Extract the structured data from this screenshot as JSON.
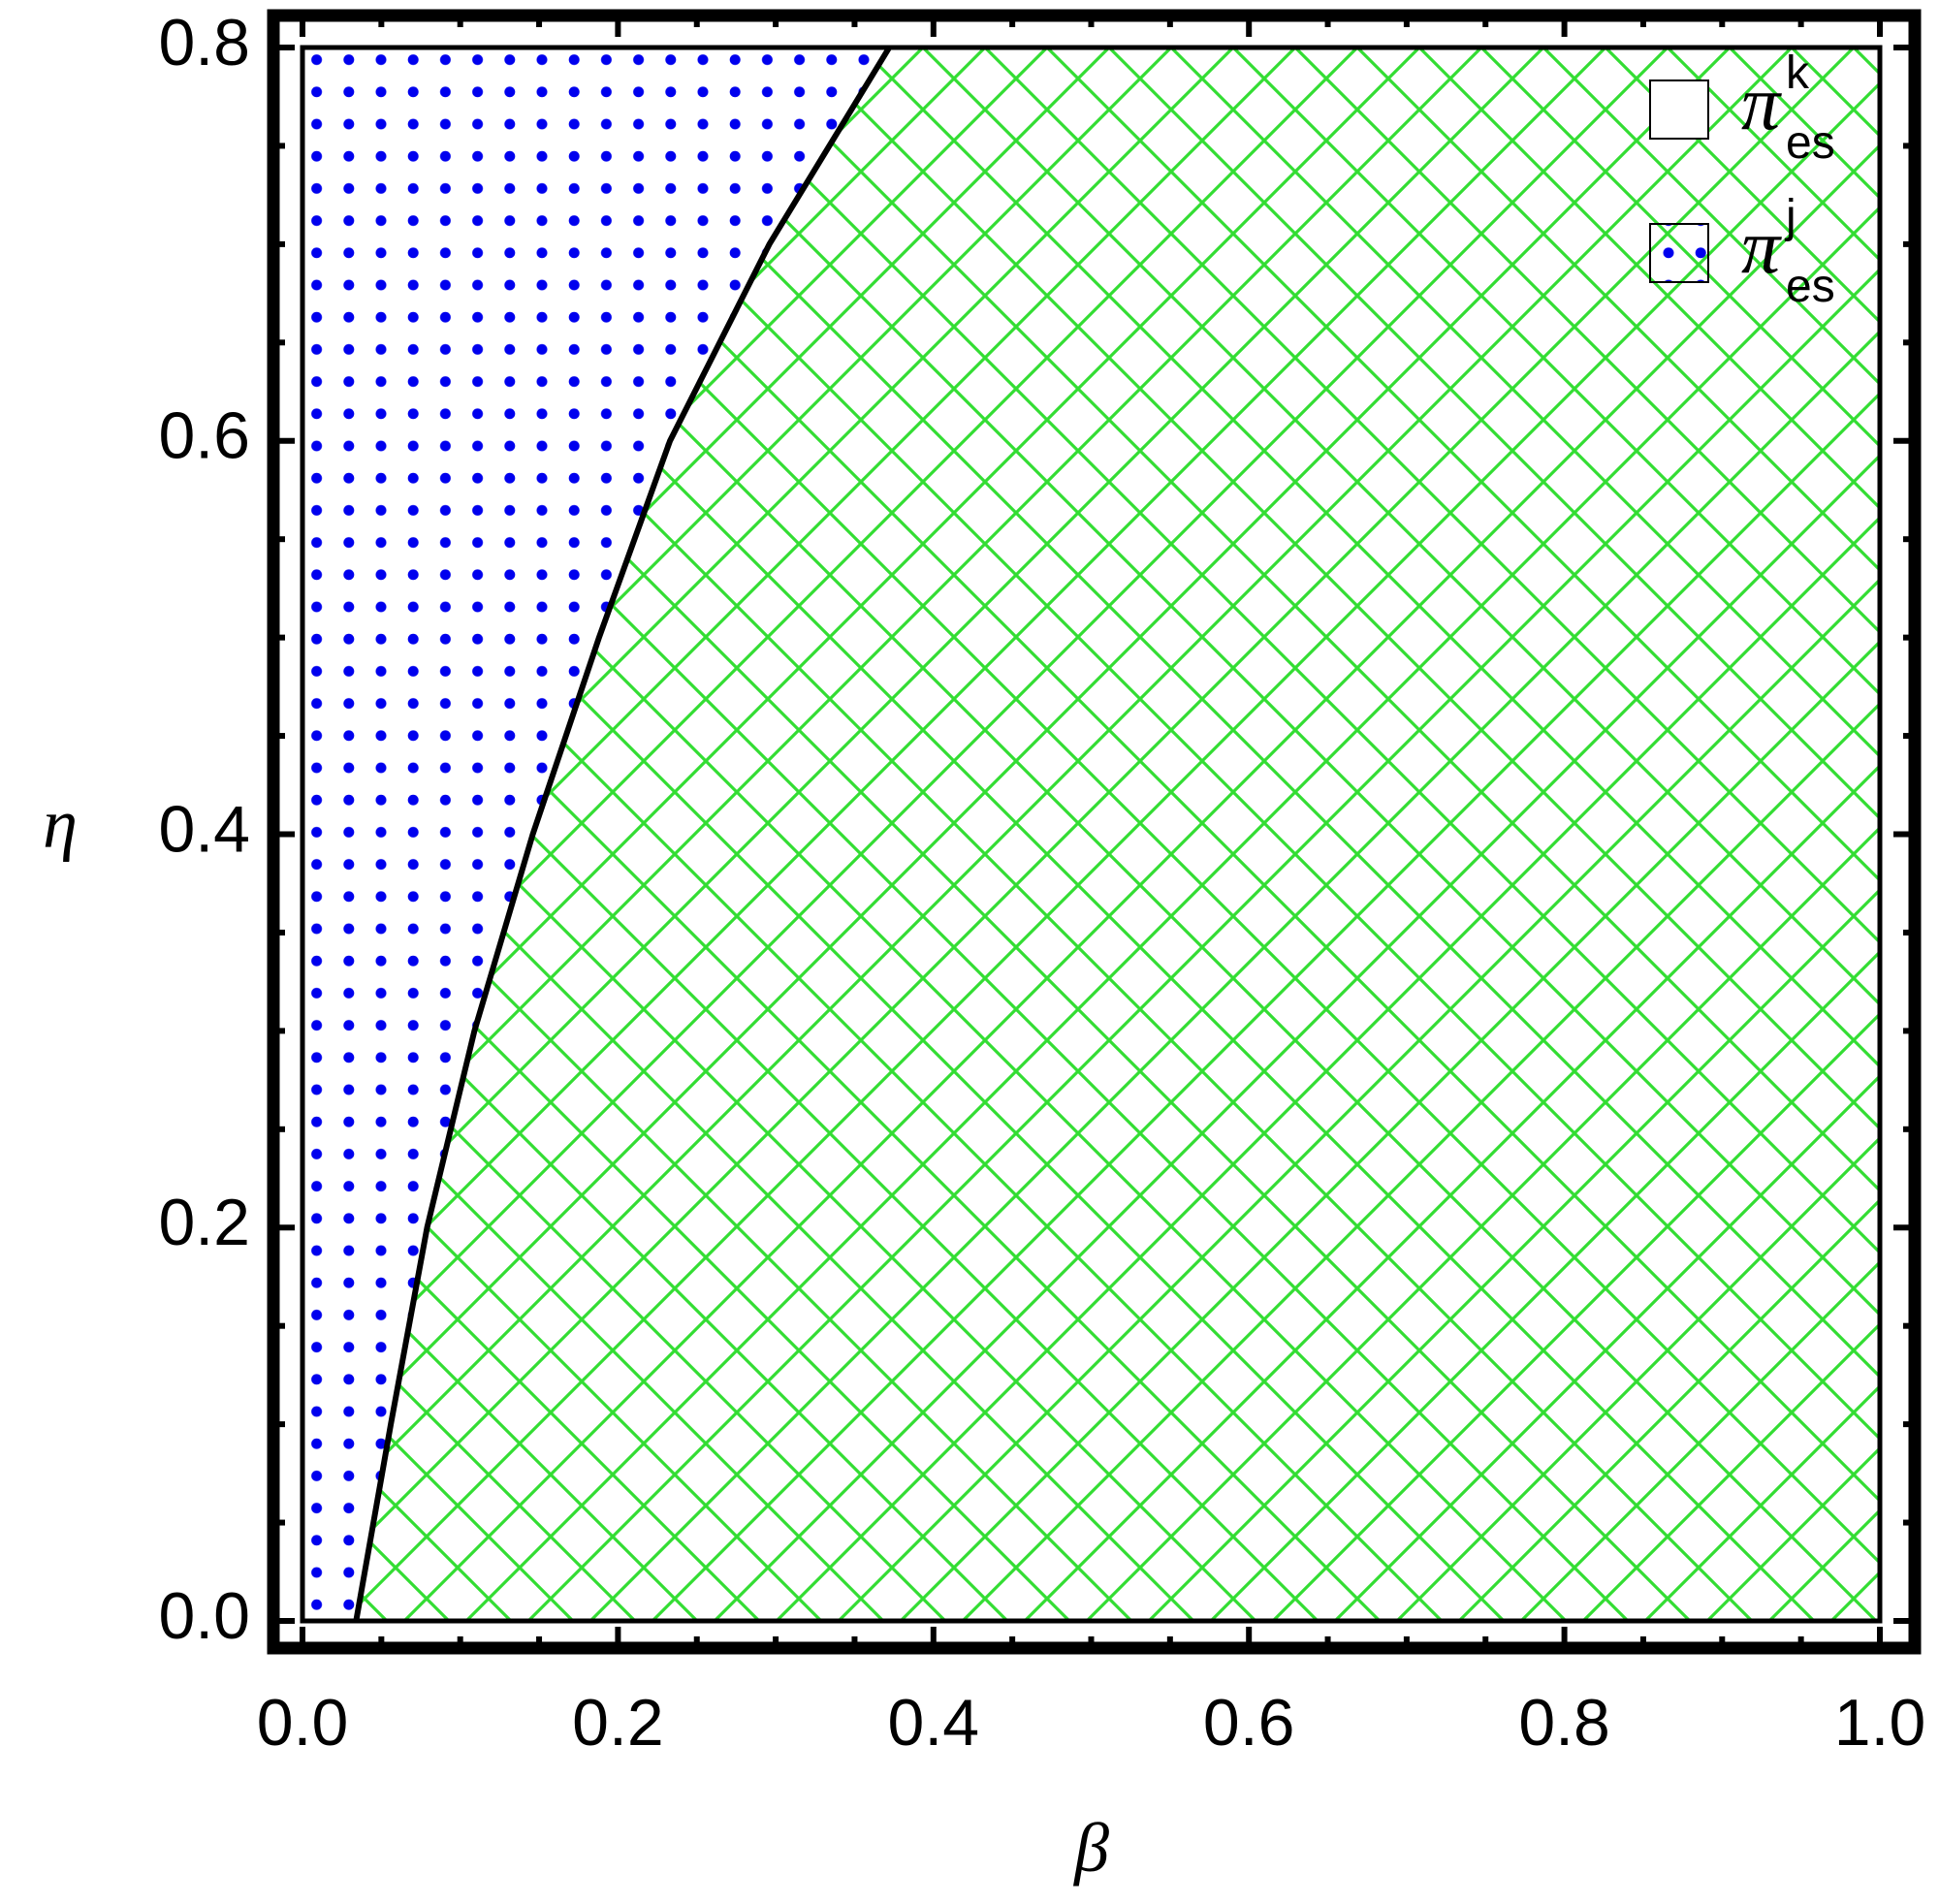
{
  "chart_data": {
    "type": "region",
    "x_label": "β",
    "y_label": "η",
    "xlim": [
      0,
      1
    ],
    "ylim": [
      0,
      0.8
    ],
    "xticks": [
      {
        "value": 0,
        "label": "0.0"
      },
      0.2,
      0.4,
      0.6,
      0.8,
      {
        "value": 1,
        "label": "1.0"
      }
    ],
    "yticks": [
      {
        "value": 0,
        "label": "0.0"
      },
      0.2,
      0.4,
      0.6,
      0.8
    ],
    "xminorticks": [
      0.05,
      0.1,
      0.15,
      0.25,
      0.3,
      0.35,
      0.45,
      0.5,
      0.55,
      0.65,
      0.7,
      0.75,
      0.85,
      0.9,
      0.95
    ],
    "yminorticks": [
      0.05,
      0.1,
      0.15,
      0.25,
      0.3,
      0.35,
      0.45,
      0.5,
      0.55,
      0.65,
      0.7,
      0.75
    ],
    "boundary": {
      "color": "#000000",
      "x": [
        0.034,
        0.056,
        0.079,
        0.109,
        0.146,
        0.188,
        0.233,
        0.296,
        0.372
      ],
      "y": [
        0,
        0.1,
        0.2,
        0.3,
        0.4,
        0.5,
        0.6,
        0.7,
        0.8
      ]
    },
    "regions": [
      {
        "symbol": "π",
        "superscript": "k",
        "subscript": "es",
        "side": "right",
        "pattern": "crosshatch",
        "color": "#33dd33"
      },
      {
        "symbol": "π",
        "superscript": "j",
        "subscript": "es",
        "side": "left",
        "pattern": "dots",
        "color": "#0000ee"
      }
    ],
    "legend": "top-right"
  }
}
